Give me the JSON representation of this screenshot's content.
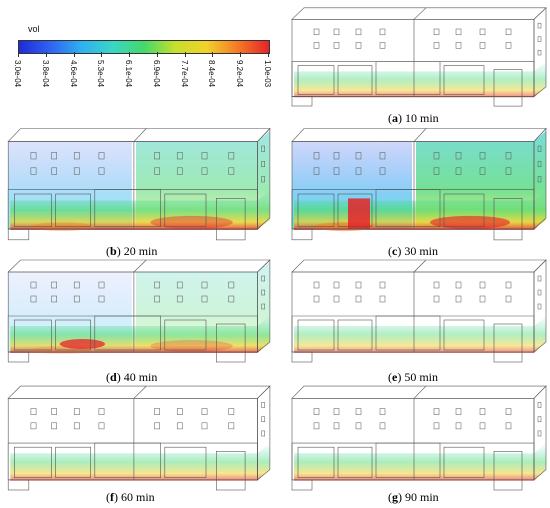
{
  "legend": {
    "title": "vol",
    "gradient_colors": [
      "#1f2bd8",
      "#2f63f2",
      "#2fb0f2",
      "#3ad6c6",
      "#45d86a",
      "#c6e02e",
      "#f1d12a",
      "#f57a27",
      "#e5232a"
    ],
    "ticks": [
      "3.0e-04",
      "3.8e-04",
      "4.6e-04",
      "5.3e-04",
      "6.1e-04",
      "6.9e-04",
      "7.7e-04",
      "8.4e-04",
      "9.2e-04",
      "1.0e-03"
    ]
  },
  "panels": [
    {
      "id": "a",
      "letter": "a",
      "label": " 10 min"
    },
    {
      "id": "b",
      "letter": "b",
      "label": " 20 min"
    },
    {
      "id": "c",
      "letter": "c",
      "label": " 30 min"
    },
    {
      "id": "d",
      "letter": "d",
      "label": " 40 min"
    },
    {
      "id": "e",
      "letter": "e",
      "label": " 50 min"
    },
    {
      "id": "f",
      "letter": "f",
      "label": " 60 min"
    },
    {
      "id": "g",
      "letter": "g",
      "label": " 90 min"
    }
  ]
}
